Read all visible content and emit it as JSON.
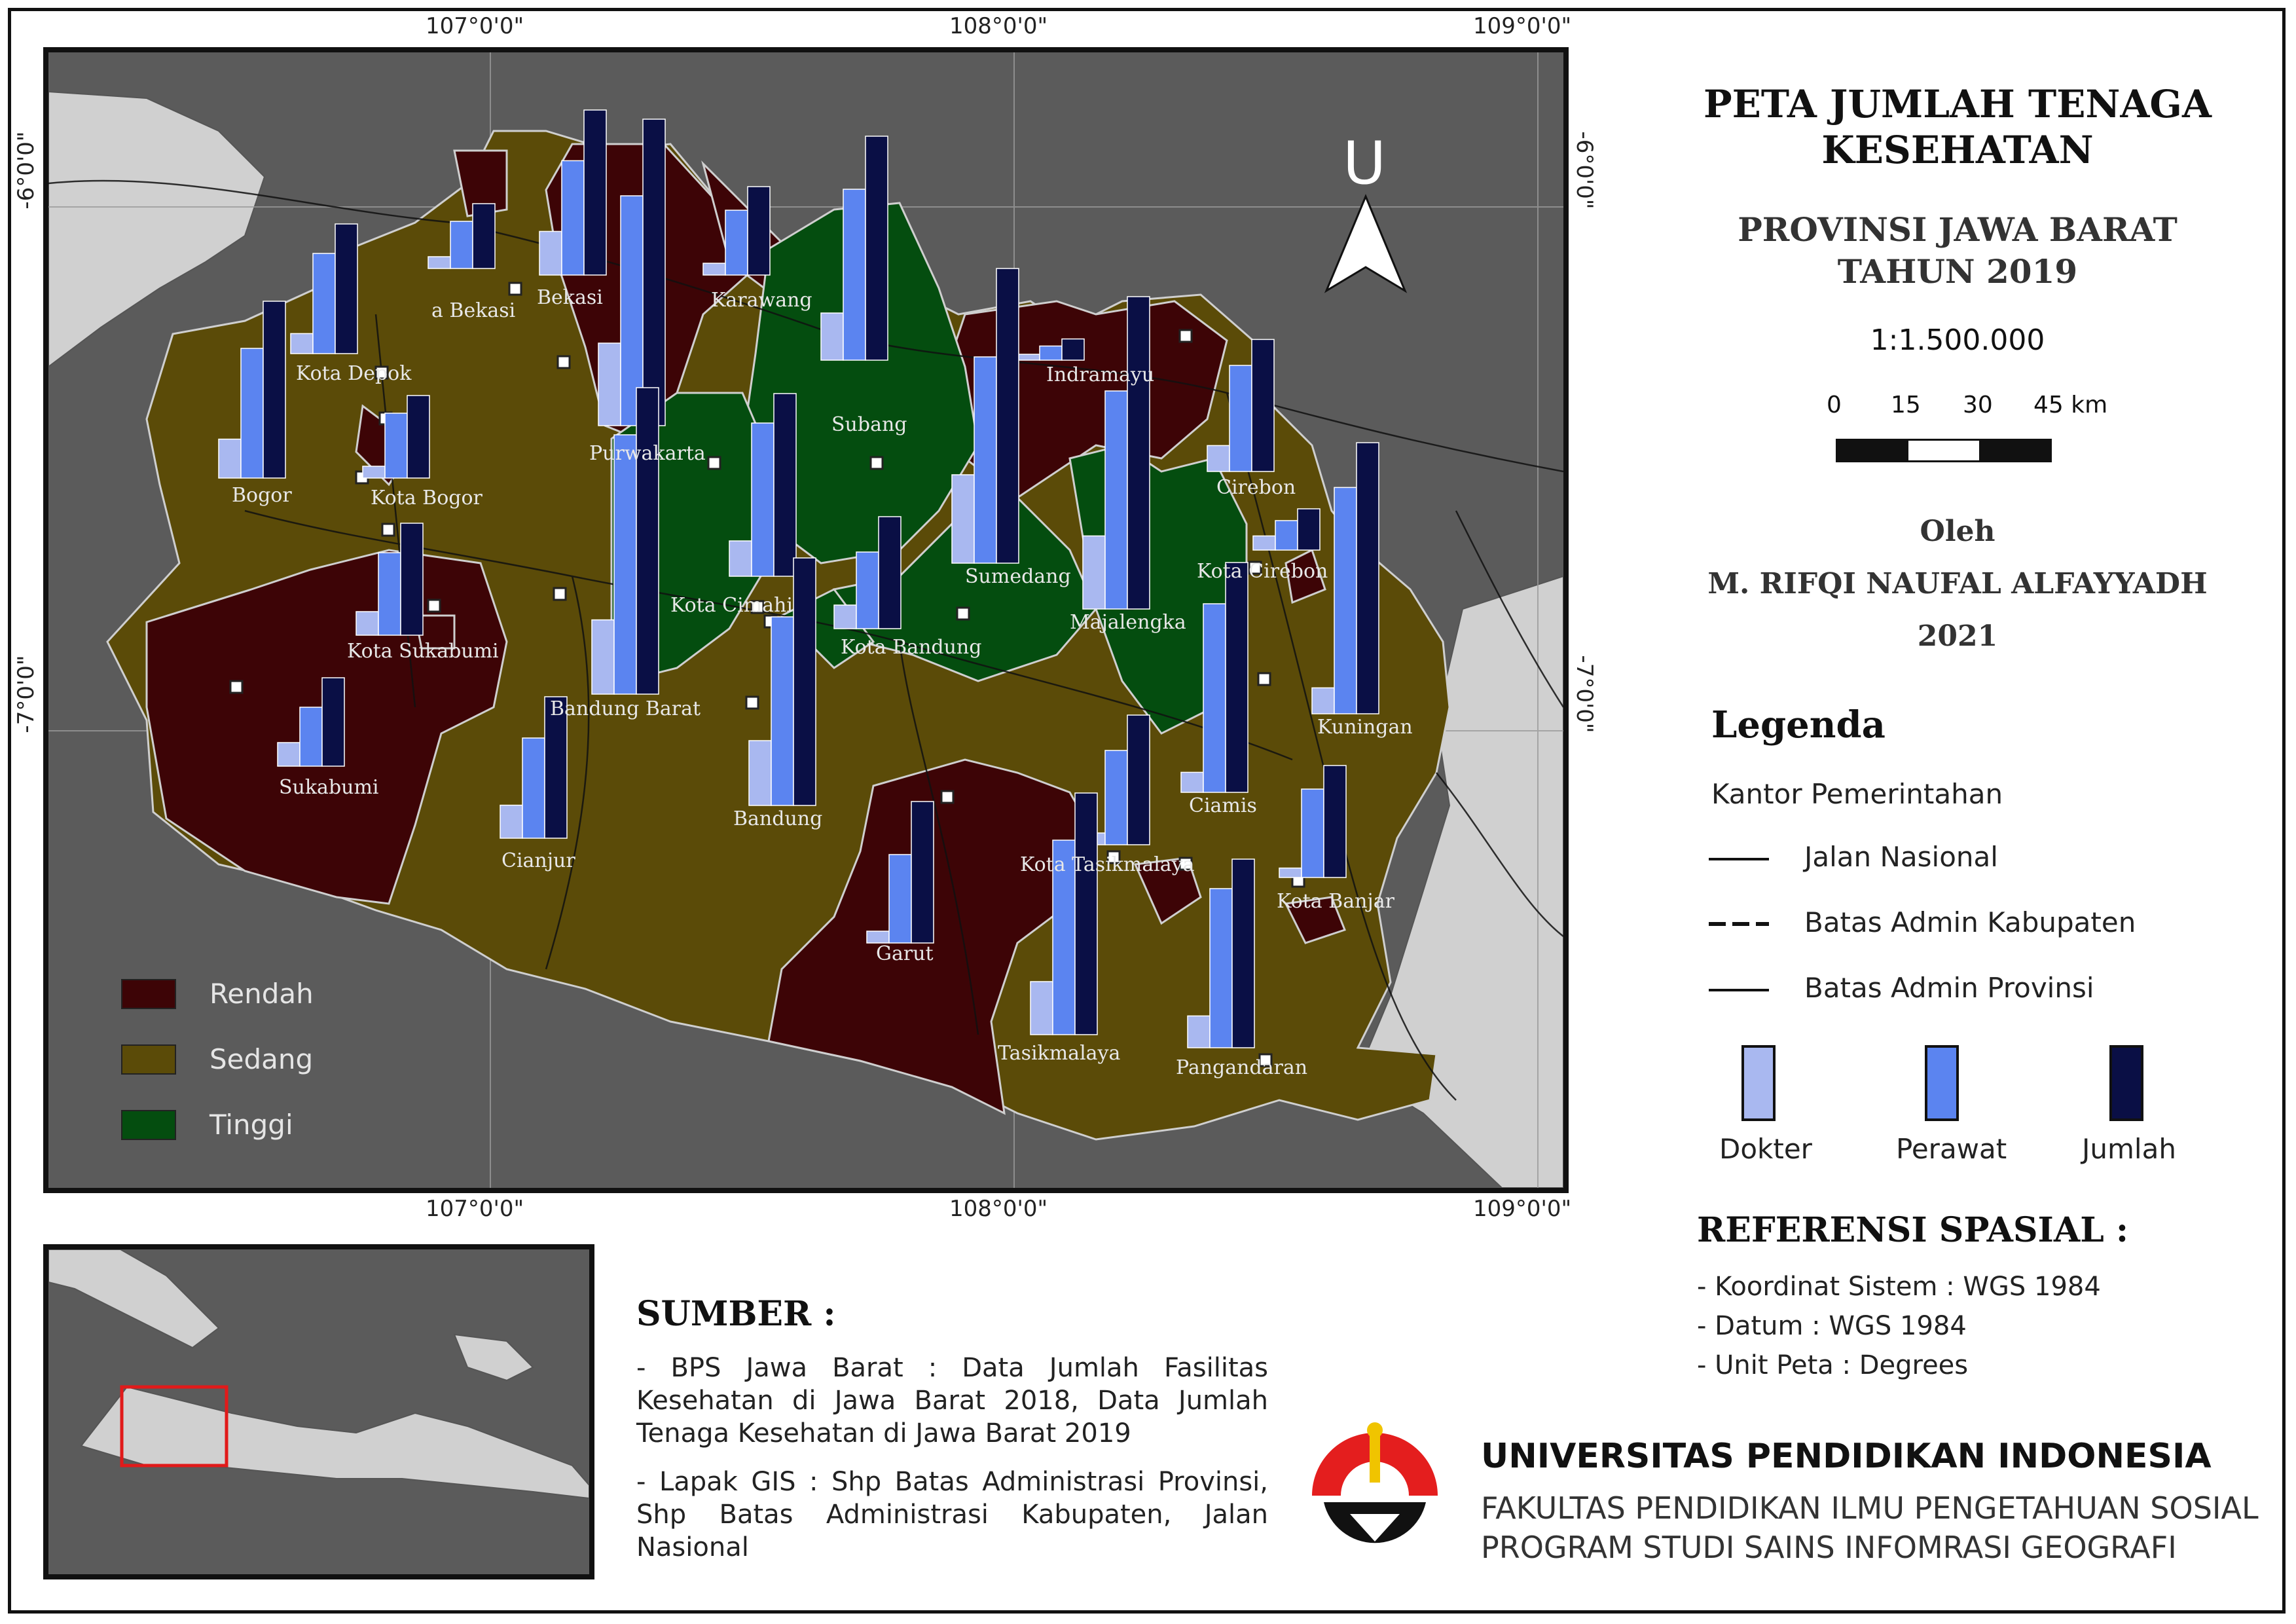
{
  "title_line1": "PETA JUMLAH TENAGA",
  "title_line2": "KESEHATAN",
  "subtitle_line1": "PROVINSI JAWA BARAT",
  "subtitle_line2": "TAHUN 2019",
  "scale_text": "1:1.500.000",
  "scale_bar": {
    "labels": [
      "0",
      "15",
      "30",
      "45 km"
    ]
  },
  "author": {
    "by": "Oleh",
    "name": "M.  RIFQI NAUFAL ALFAYYADH",
    "year": "2021"
  },
  "north_arrow": {
    "label": "U",
    "icon": "north-arrow-icon"
  },
  "coordinates": {
    "top": [
      "107°0'0\"",
      "108°0'0\"",
      "109°0'0\""
    ],
    "bottom": [
      "107°0'0\"",
      "108°0'0\"",
      "109°0'0\""
    ],
    "left": [
      "-6°0'0\"",
      "-7°0'0\""
    ],
    "right": [
      "-6°0'0\"",
      "-7°0'0\""
    ]
  },
  "legend": {
    "heading": "Legenda",
    "office": "Kantor Pemerintahan",
    "lines": [
      "Jalan Nasional",
      "Batas Admin Kabupaten",
      "Batas Admin Provinsi"
    ],
    "bars": [
      "Dokter",
      "Perawat",
      "Jumlah"
    ],
    "bar_colors": [
      "#a9b8f0",
      "#5b84f0",
      "#0a0f45"
    ]
  },
  "class_legend": [
    {
      "label": "Rendah",
      "color": "#3d0406"
    },
    {
      "label": "Sedang",
      "color": "#5b4b08"
    },
    {
      "label": "Tinggi",
      "color": "#044d0f"
    }
  ],
  "reference": {
    "heading": "REFERENSI SPASIAL :",
    "items": [
      "- Koordinat Sistem : WGS 1984",
      "- Datum : WGS 1984",
      "- Unit Peta : Degrees"
    ]
  },
  "source": {
    "heading": "SUMBER :",
    "item1": "- BPS Jawa Barat : Data Jumlah Fasilitas Kesehatan di Jawa Barat 2018, Data Jumlah Tenaga Kesehatan di Jawa Barat 2019",
    "item2": "- Lapak GIS : Shp Batas Administrasi Provinsi, Shp Batas Administrasi Kabupaten, Jalan Nasional"
  },
  "institution": {
    "name": "UNIVERSITAS PENDIDIKAN INDONESIA",
    "faculty": "FAKULTAS PENDIDIKAN ILMU PENGETAHUAN SOSIAL",
    "program": "PROGRAM STUDI SAINS INFOMRASI GEOGRAFI"
  },
  "regions": [
    {
      "name": "Kota Bekasi",
      "label": "a Bekasi",
      "class": "Rendah",
      "bars": [
        0.1,
        0.4,
        0.55
      ]
    },
    {
      "name": "Bekasi",
      "label": "Bekasi",
      "class": "Rendah",
      "bars": [
        0.37,
        0.97,
        1.4
      ]
    },
    {
      "name": "Karawang",
      "label": "Karawang",
      "class": "Rendah",
      "bars": [
        0.1,
        0.55,
        0.75
      ]
    },
    {
      "name": "Subang",
      "label": "Subang",
      "class": "Tinggi",
      "bars": [
        0.4,
        1.45,
        1.9
      ]
    },
    {
      "name": "Kota Depok",
      "label": "Kota Depok",
      "class": "Rendah",
      "bars": [
        0.17,
        0.85,
        1.1
      ]
    },
    {
      "name": "Purwakarta",
      "label": "Purwakarta",
      "class": "Rendah",
      "bars": [
        0.7,
        1.95,
        2.6
      ]
    },
    {
      "name": "Indramayu",
      "label": "Indramayu",
      "class": "Rendah",
      "bars": [
        0.05,
        0.12,
        0.18
      ]
    },
    {
      "name": "Bogor",
      "label": "Bogor",
      "class": "Sedang",
      "bars": [
        0.33,
        1.1,
        1.5
      ]
    },
    {
      "name": "Kota Bogor",
      "label": "Kota Bogor",
      "class": "Rendah",
      "bars": [
        0.1,
        0.55,
        0.7
      ]
    },
    {
      "name": "Cirebon",
      "label": "Cirebon",
      "class": "Sedang",
      "bars": [
        0.22,
        0.9,
        1.12
      ]
    },
    {
      "name": "Kota Cimahi",
      "label": "Kota Cimahi",
      "class": "Tinggi",
      "bars": [
        0.3,
        1.3,
        1.55
      ]
    },
    {
      "name": "Sumedang",
      "label": "Sumedang",
      "class": "Tinggi",
      "bars": [
        0.75,
        1.75,
        2.5
      ]
    },
    {
      "name": "Majalengka",
      "label": "Majalengka",
      "class": "Tinggi",
      "bars": [
        0.62,
        1.85,
        2.65
      ]
    },
    {
      "name": "Kota Cirebon",
      "label": "Kota Cirebon",
      "class": "Rendah",
      "bars": [
        0.12,
        0.25,
        0.35
      ]
    },
    {
      "name": "Kota Sukabumi",
      "label": "Kota Sukabumi",
      "class": "Rendah",
      "bars": [
        0.2,
        0.7,
        0.95
      ]
    },
    {
      "name": "Kota Bandung",
      "label": "Kota Bandung",
      "class": "Tinggi",
      "bars": [
        0.2,
        0.65,
        0.95
      ]
    },
    {
      "name": "Bandung Barat",
      "label": "Bandung Barat",
      "class": "Tinggi",
      "bars": [
        0.63,
        2.2,
        2.6
      ]
    },
    {
      "name": "Kuningan",
      "label": "Kuningan",
      "class": "Sedang",
      "bars": [
        0.22,
        1.92,
        2.3
      ]
    },
    {
      "name": "Sukabumi",
      "label": "Sukabumi",
      "class": "Rendah",
      "bars": [
        0.2,
        0.5,
        0.75
      ]
    },
    {
      "name": "Bandung",
      "label": "Bandung",
      "class": "Sedang",
      "bars": [
        0.55,
        1.6,
        2.1
      ]
    },
    {
      "name": "Ciamis",
      "label": "Ciamis",
      "class": "Sedang",
      "bars": [
        0.17,
        1.6,
        1.95
      ]
    },
    {
      "name": "Cianjur",
      "label": "Cianjur",
      "class": "Sedang",
      "bars": [
        0.28,
        0.85,
        1.2
      ]
    },
    {
      "name": "Kota Tasikmalaya",
      "label": "Kota Tasikmalaya",
      "class": "Rendah",
      "bars": [
        0.1,
        0.8,
        1.1
      ]
    },
    {
      "name": "Kota Banjar",
      "label": "Kota Banjar",
      "class": "Rendah",
      "bars": [
        0.08,
        0.75,
        0.95
      ]
    },
    {
      "name": "Garut",
      "label": "Garut",
      "class": "Rendah",
      "bars": [
        0.1,
        0.75,
        1.2
      ]
    },
    {
      "name": "Tasikmalaya",
      "label": "Tasikmalaya",
      "class": "Sedang",
      "bars": [
        0.45,
        1.65,
        2.05
      ]
    },
    {
      "name": "Pangandaran",
      "label": "Pangandaran",
      "class": "Sedang",
      "bars": [
        0.27,
        1.35,
        1.6
      ]
    }
  ]
}
